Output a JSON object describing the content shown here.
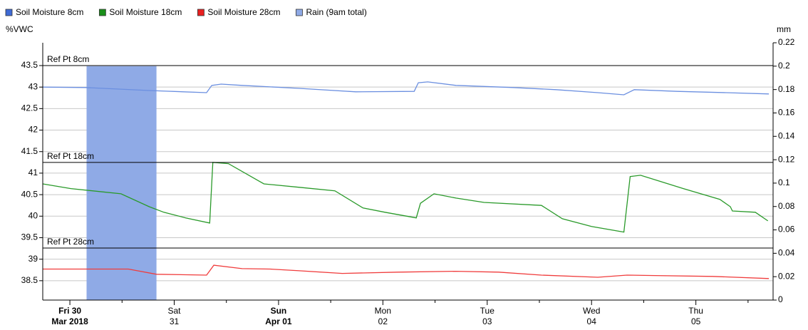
{
  "chart_data": {
    "type": "line",
    "ylabel": "%VWC",
    "y2label": "mm",
    "ylim": [
      38.05,
      44.03
    ],
    "yticks": [
      38.5,
      39,
      39.5,
      40,
      40.5,
      41,
      41.5,
      42,
      42.5,
      43,
      43.5
    ],
    "y2lim": [
      0,
      0.22
    ],
    "y2ticks": [
      0,
      0.02,
      0.04,
      0.06,
      0.08,
      0.1,
      0.12,
      0.14,
      0.16,
      0.18,
      0.2,
      0.22
    ],
    "xlim": [
      -0.26,
      6.74
    ],
    "xticks": [
      {
        "value": 0,
        "label": [
          "Fri 30",
          "Mar 2018"
        ],
        "bold": true
      },
      {
        "value": 1,
        "label": [
          "Sat",
          "31"
        ]
      },
      {
        "value": 2,
        "label": [
          "Sun",
          "Apr 01"
        ],
        "bold": true
      },
      {
        "value": 3,
        "label": [
          "Mon",
          "02"
        ]
      },
      {
        "value": 4,
        "label": [
          "Tue",
          "03"
        ]
      },
      {
        "value": 5,
        "label": [
          "Wed",
          "04"
        ]
      },
      {
        "value": 6,
        "label": [
          "Thu",
          "05"
        ]
      }
    ],
    "xminorticks": [
      0.5,
      1.5,
      2.5,
      3.5,
      4.5,
      5.5,
      6.5
    ],
    "grid": true,
    "legend": "top",
    "reference_lines": [
      {
        "label": "Ref Pt 8cm",
        "value": 43.5
      },
      {
        "label": "Ref Pt 18cm",
        "value": 41.25
      },
      {
        "label": "Ref Pt 28cm",
        "value": 39.26
      }
    ],
    "series": [
      {
        "name": "Soil Moisture 8cm",
        "type": "line",
        "color": "#3f6bd6",
        "line_color": "#6b8fe0",
        "x": [
          -0.26,
          0.15,
          0.76,
          1.31,
          1.36,
          1.45,
          1.65,
          2.2,
          2.74,
          3.3,
          3.34,
          3.43,
          3.7,
          4.25,
          4.66,
          5.06,
          5.31,
          5.41,
          5.82,
          6.29,
          6.7
        ],
        "values": [
          43.0,
          42.99,
          42.92,
          42.87,
          43.04,
          43.07,
          43.04,
          42.97,
          42.89,
          42.9,
          43.1,
          43.12,
          43.04,
          42.99,
          42.94,
          42.87,
          42.82,
          42.94,
          42.9,
          42.87,
          42.84
        ]
      },
      {
        "name": "Soil Moisture 18cm",
        "type": "line",
        "color": "#1a8f1a",
        "line_color": "#2a9a2a",
        "x": [
          -0.26,
          0.01,
          0.49,
          0.76,
          0.9,
          1.11,
          1.34,
          1.37,
          1.52,
          1.86,
          2.2,
          2.54,
          2.81,
          3.02,
          3.32,
          3.36,
          3.49,
          3.7,
          3.97,
          4.52,
          4.72,
          5.0,
          5.31,
          5.37,
          5.47,
          5.88,
          6.23,
          6.33,
          6.35,
          6.57,
          6.69
        ],
        "values": [
          40.75,
          40.64,
          40.52,
          40.22,
          40.09,
          39.96,
          39.84,
          41.25,
          41.22,
          40.75,
          40.67,
          40.59,
          40.19,
          40.09,
          39.96,
          40.3,
          40.52,
          40.42,
          40.32,
          40.25,
          39.94,
          39.76,
          39.63,
          40.92,
          40.95,
          40.64,
          40.39,
          40.22,
          40.12,
          40.09,
          39.89
        ]
      },
      {
        "name": "Soil Moisture 28cm",
        "type": "line",
        "color": "#e82020",
        "line_color": "#f03c3c",
        "x": [
          -0.26,
          0.01,
          0.56,
          0.83,
          1.31,
          1.38,
          1.65,
          1.92,
          2.2,
          2.61,
          3.15,
          3.7,
          4.11,
          4.52,
          5.06,
          5.34,
          5.61,
          6.16,
          6.7
        ],
        "values": [
          38.77,
          38.77,
          38.77,
          38.65,
          38.63,
          38.86,
          38.78,
          38.77,
          38.73,
          38.67,
          38.7,
          38.72,
          38.7,
          38.63,
          38.58,
          38.63,
          38.62,
          38.6,
          38.55
        ]
      },
      {
        "name": "Rain (9am total)",
        "type": "bar",
        "axis": "y2",
        "color": "#8faae6",
        "x_start": [
          0.16
        ],
        "x_end": [
          0.83
        ],
        "values": [
          0.2
        ]
      }
    ]
  }
}
